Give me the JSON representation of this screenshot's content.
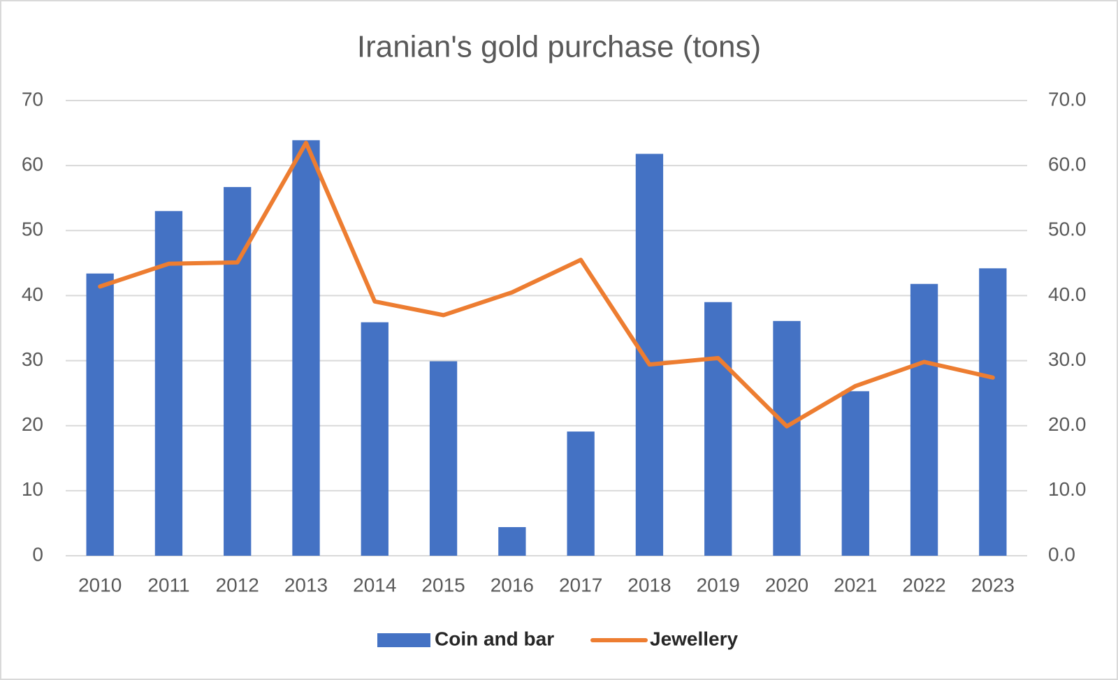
{
  "chart_data": {
    "type": "bar_line",
    "title": "Iranian's gold purchase (tons)",
    "categories": [
      "2010",
      "2011",
      "2012",
      "2013",
      "2014",
      "2015",
      "2016",
      "2017",
      "2018",
      "2019",
      "2020",
      "2021",
      "2022",
      "2023"
    ],
    "series": [
      {
        "name": "Coin and bar",
        "type": "bar",
        "color": "#4472c4",
        "values": [
          43.4,
          53.0,
          56.7,
          63.9,
          35.9,
          29.9,
          4.4,
          19.1,
          61.8,
          39.0,
          36.1,
          25.3,
          41.8,
          44.2
        ]
      },
      {
        "name": "Jewellery",
        "type": "line",
        "axis": "y2",
        "color": "#ed7d31",
        "values": [
          41.4,
          44.9,
          45.1,
          63.5,
          39.1,
          37.0,
          40.5,
          45.5,
          29.4,
          30.4,
          19.9,
          26.1,
          29.8,
          27.4
        ]
      }
    ],
    "ylim": [
      0,
      70
    ],
    "yticks": [
      0,
      10,
      20,
      30,
      40,
      50,
      60,
      70
    ],
    "y2lim": [
      0,
      70
    ],
    "y2ticks": [
      {
        "value": 0,
        "label": "0.0"
      },
      {
        "value": 10,
        "label": "10.0"
      },
      {
        "value": 20,
        "label": "20.0"
      },
      {
        "value": 30,
        "label": "30.0"
      },
      {
        "value": 40,
        "label": "40.0"
      },
      {
        "value": 50,
        "label": "50.0"
      },
      {
        "value": 60,
        "label": "60.0"
      },
      {
        "value": 70,
        "label": "70.0"
      }
    ],
    "grid": true,
    "legend": "bottom"
  }
}
